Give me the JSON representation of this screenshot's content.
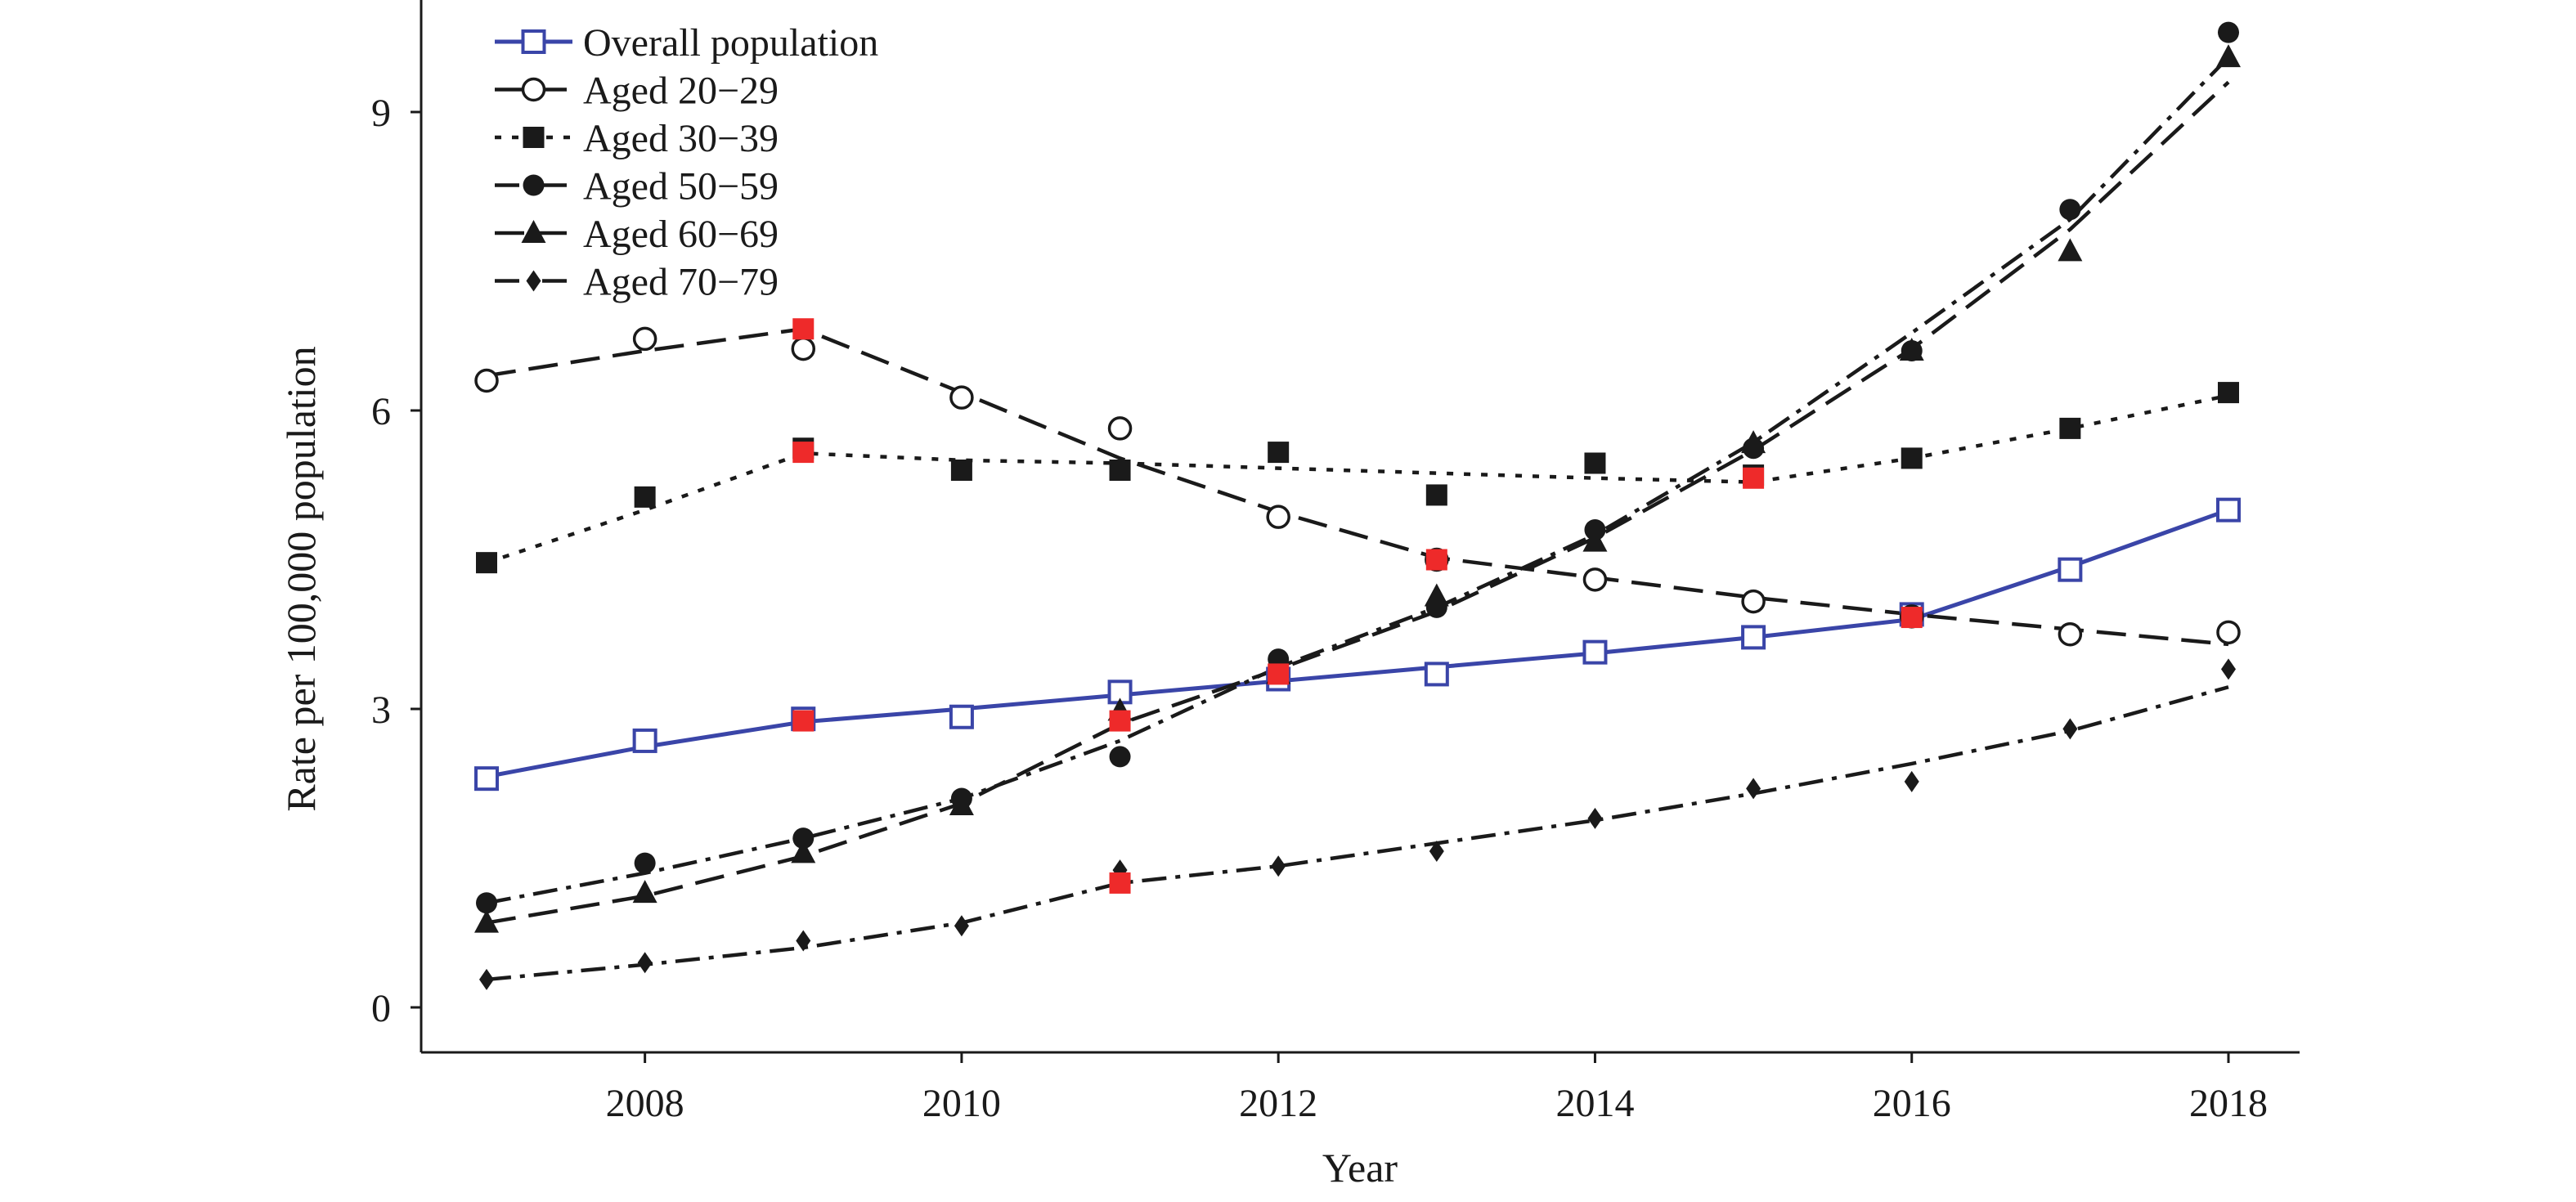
{
  "chart_data": {
    "type": "line",
    "title": "",
    "xlabel": "Year",
    "ylabel": "Rate per 100,000 population",
    "xlim": [
      2006.6,
      2018.45
    ],
    "ylim": [
      -0.4,
      10.1
    ],
    "xticks": [
      2008,
      2010,
      2012,
      2014,
      2016,
      2018
    ],
    "xtick_labels": [
      "2008",
      "2010",
      "2012",
      "2014",
      "2016",
      "2018"
    ],
    "yticks": [
      0,
      3,
      6,
      9
    ],
    "ytick_labels": [
      "0",
      "3",
      "6",
      "9"
    ],
    "grid": false,
    "legend_position": "top-left",
    "x": [
      2007,
      2008,
      2009,
      2010,
      2011,
      2012,
      2013,
      2014,
      2015,
      2016,
      2017,
      2018
    ],
    "series": [
      {
        "name": "Overall population",
        "marker": "open-square",
        "line_style": "solid",
        "color": "#3a45a8",
        "values": [
          2.3,
          2.68,
          2.9,
          2.92,
          3.17,
          3.3,
          3.35,
          3.57,
          3.72,
          3.95,
          4.4,
          5.0
        ],
        "fit": [
          2.32,
          2.62,
          2.87,
          3.0,
          3.14,
          3.28,
          3.42,
          3.56,
          3.72,
          3.9,
          4.43,
          5.0
        ]
      },
      {
        "name": "Aged 20−29",
        "marker": "open-circle",
        "line_style": "long-dash",
        "color": "#1a1a1a",
        "values": [
          6.3,
          6.72,
          6.62,
          6.13,
          5.82,
          4.93,
          4.5,
          4.3,
          4.08,
          3.93,
          3.75,
          3.77
        ],
        "fit": [
          6.35,
          6.6,
          6.82,
          6.18,
          5.52,
          4.98,
          4.52,
          4.32,
          4.12,
          3.95,
          3.8,
          3.65
        ]
      },
      {
        "name": "Aged 30−39",
        "marker": "filled-square",
        "line_style": "dotted",
        "color": "#1a1a1a",
        "values": [
          4.47,
          5.13,
          5.62,
          5.4,
          5.4,
          5.58,
          5.15,
          5.47,
          5.35,
          5.52,
          5.82,
          6.18
        ],
        "fit": [
          4.47,
          5.0,
          5.57,
          5.5,
          5.47,
          5.42,
          5.37,
          5.32,
          5.28,
          5.52,
          5.82,
          6.15
        ]
      },
      {
        "name": "Aged 50−59",
        "marker": "filled-circle",
        "line_style": "dash-dot",
        "color": "#1a1a1a",
        "values": [
          1.05,
          1.45,
          1.7,
          2.1,
          2.52,
          3.5,
          4.02,
          4.8,
          5.62,
          6.6,
          8.02,
          9.8
        ],
        "fit": [
          1.05,
          1.35,
          1.7,
          2.1,
          2.68,
          3.42,
          4.02,
          4.75,
          5.68,
          6.78,
          7.92,
          9.55
        ]
      },
      {
        "name": "Aged 60−69",
        "marker": "filled-triangle",
        "line_style": "long-dash",
        "color": "#1a1a1a",
        "values": [
          0.85,
          1.15,
          1.55,
          2.03,
          2.98,
          3.35,
          4.13,
          4.68,
          5.67,
          6.6,
          7.6,
          9.55
        ],
        "fit": [
          0.85,
          1.12,
          1.52,
          2.05,
          2.85,
          3.4,
          3.98,
          4.72,
          5.6,
          6.62,
          7.82,
          9.3
        ]
      },
      {
        "name": "Aged 70−79",
        "marker": "filled-diamond",
        "line_style": "dash-dot",
        "color": "#1a1a1a",
        "values": [
          0.28,
          0.45,
          0.67,
          0.82,
          1.38,
          1.42,
          1.57,
          1.9,
          2.2,
          2.27,
          2.8,
          3.4
        ],
        "fit": [
          0.28,
          0.43,
          0.6,
          0.85,
          1.25,
          1.42,
          1.65,
          1.88,
          2.15,
          2.45,
          2.78,
          3.22
        ]
      }
    ],
    "highlights": {
      "color": "#ee2a2a",
      "marker": "filled-square",
      "points": [
        {
          "x": 2009,
          "y": 6.82
        },
        {
          "x": 2009,
          "y": 5.58
        },
        {
          "x": 2009,
          "y": 2.88
        },
        {
          "x": 2011,
          "y": 2.88
        },
        {
          "x": 2011,
          "y": 1.25
        },
        {
          "x": 2012,
          "y": 3.35
        },
        {
          "x": 2013,
          "y": 4.5
        },
        {
          "x": 2015,
          "y": 5.32
        },
        {
          "x": 2016,
          "y": 3.92
        }
      ]
    }
  }
}
